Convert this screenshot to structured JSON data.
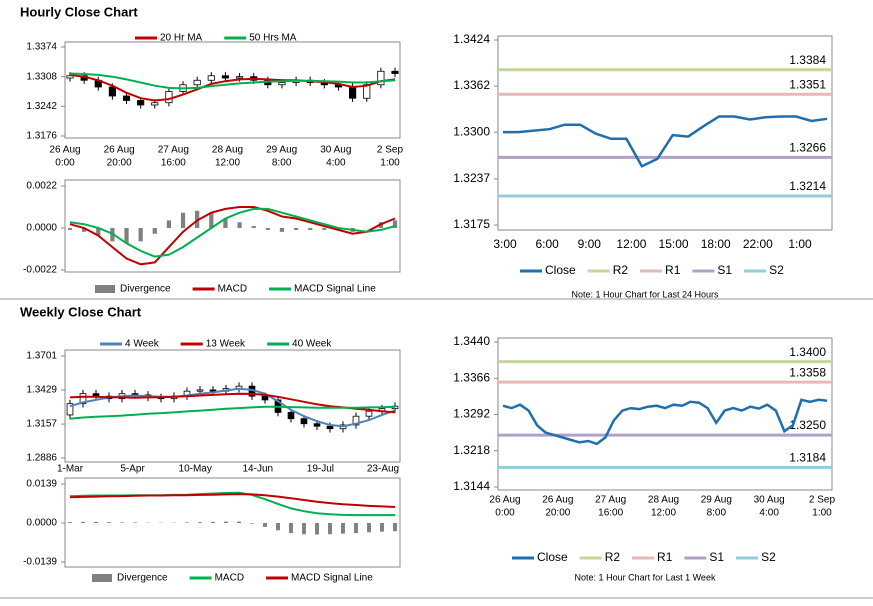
{
  "chart_data": [
    {
      "type": "candlestick",
      "title": "Hourly Close Chart",
      "ohlc": {
        "color": "#000000",
        "open": [
          1.3305,
          1.331,
          1.33,
          1.3285,
          1.3265,
          1.3255,
          1.3245,
          1.325,
          1.3275,
          1.329,
          1.33,
          1.331,
          1.3305,
          1.3308,
          1.33,
          1.329,
          1.3295,
          1.33,
          1.3295,
          1.329,
          1.3285,
          1.326,
          1.329,
          1.332
        ],
        "high": [
          1.3318,
          1.3318,
          1.3308,
          1.3293,
          1.3273,
          1.3263,
          1.3258,
          1.3283,
          1.3298,
          1.3308,
          1.3318,
          1.3318,
          1.3316,
          1.3316,
          1.3308,
          1.3303,
          1.3308,
          1.3308,
          1.3303,
          1.3298,
          1.3293,
          1.3298,
          1.3328,
          1.3328
        ],
        "low": [
          1.3297,
          1.3292,
          1.3277,
          1.3257,
          1.3247,
          1.3237,
          1.3237,
          1.3242,
          1.3267,
          1.3282,
          1.3292,
          1.3297,
          1.3297,
          1.3292,
          1.3282,
          1.3282,
          1.3287,
          1.3287,
          1.3282,
          1.3277,
          1.3252,
          1.3252,
          1.3282,
          1.3307
        ],
        "close": [
          1.331,
          1.33,
          1.3285,
          1.3265,
          1.3255,
          1.3245,
          1.325,
          1.3275,
          1.329,
          1.33,
          1.331,
          1.3305,
          1.3308,
          1.33,
          1.329,
          1.3295,
          1.33,
          1.3295,
          1.329,
          1.3285,
          1.326,
          1.329,
          1.332,
          1.3315
        ]
      },
      "series": [
        {
          "name": "20 Hr MA",
          "color": "#c00000",
          "values": [
            1.3312,
            1.3308,
            1.33,
            1.3288,
            1.3272,
            1.326,
            1.3255,
            1.3258,
            1.3268,
            1.328,
            1.3292,
            1.3298,
            1.3302,
            1.3303,
            1.3302,
            1.33,
            1.33,
            1.3298,
            1.3296,
            1.3292,
            1.3285,
            1.3288,
            1.3298,
            1.3302
          ]
        },
        {
          "name": "50 Hrs MA",
          "color": "#00b050",
          "values": [
            1.3315,
            1.3314,
            1.3312,
            1.3308,
            1.3302,
            1.3295,
            1.3288,
            1.3283,
            1.3282,
            1.3283,
            1.3287,
            1.329,
            1.3293,
            1.3295,
            1.3297,
            1.3298,
            1.3299,
            1.3299,
            1.3298,
            1.3297,
            1.3295,
            1.3295,
            1.3298,
            1.33
          ]
        }
      ],
      "ylim": [
        1.3176,
        1.3374
      ],
      "yticks": [
        1.3374,
        1.3308,
        1.3242,
        1.3176
      ],
      "xtick_labels": [
        [
          "26 Aug",
          "0:00"
        ],
        [
          "26 Aug",
          "20:00"
        ],
        [
          "27 Aug",
          "16:00"
        ],
        [
          "28 Aug",
          "12:00"
        ],
        [
          "29 Aug",
          "8:00"
        ],
        [
          "30 Aug",
          "4:00"
        ],
        [
          "2 Sep",
          "1:00"
        ]
      ]
    },
    {
      "type": "macd",
      "series": [
        {
          "name": "Divergence",
          "color": "#808080",
          "kind": "bar",
          "values": [
            -0.0001,
            -0.0002,
            -0.0004,
            -0.0007,
            -0.0008,
            -0.0007,
            -0.0003,
            0.0004,
            0.0008,
            0.0009,
            0.0008,
            0.0005,
            0.0003,
            0.0001,
            -0.0001,
            -0.0002,
            -0.0001,
            -0.0001,
            -0.0001,
            -0.0001,
            -0.0002,
            0.0,
            0.0003,
            0.0004
          ]
        },
        {
          "name": "MACD",
          "color": "#c00000",
          "values": [
            0.0002,
            0.0,
            -0.0004,
            -0.001,
            -0.0016,
            -0.0019,
            -0.0018,
            -0.001,
            -0.0002,
            0.0004,
            0.0008,
            0.001,
            0.0011,
            0.0011,
            0.0009,
            0.0006,
            0.0005,
            0.0003,
            0.0001,
            -0.0001,
            -0.0003,
            -0.0002,
            0.0002,
            0.0005
          ]
        },
        {
          "name": "MACD Signal Line",
          "color": "#00b050",
          "values": [
            0.0003,
            0.0002,
            0.0,
            -0.0003,
            -0.0008,
            -0.0012,
            -0.0015,
            -0.0014,
            -0.001,
            -0.0005,
            0.0,
            0.0005,
            0.0008,
            0.001,
            0.001,
            0.0008,
            0.0006,
            0.0004,
            0.0002,
            0.0,
            -0.0001,
            -0.0002,
            -0.0001,
            0.0001
          ]
        }
      ],
      "ylim": [
        -0.0022,
        0.0022
      ],
      "yticks": [
        0.0022,
        {
          "value": 0,
          "label": "0.0000"
        },
        -0.0022
      ]
    },
    {
      "type": "line",
      "series": [
        {
          "name": "Close",
          "color": "#1f6eb0",
          "values": [
            1.33,
            1.33,
            1.3302,
            1.3304,
            1.331,
            1.331,
            1.3298,
            1.3291,
            1.3291,
            1.3254,
            1.3264,
            1.3296,
            1.3294,
            1.3308,
            1.3321,
            1.3321,
            1.3317,
            1.332,
            1.3321,
            1.3321,
            1.3315,
            1.3318
          ]
        }
      ],
      "levels": [
        {
          "name": "R2",
          "color": "#c4d79b",
          "value": 1.3384
        },
        {
          "name": "R1",
          "color": "#e6b9b8",
          "value": 1.3351
        },
        {
          "name": "S1",
          "color": "#b1a0c7",
          "value": 1.3266
        },
        {
          "name": "S2",
          "color": "#92cddc",
          "value": 1.3214
        }
      ],
      "ylim": [
        1.3175,
        1.3424
      ],
      "yticks": [
        1.3424,
        1.3362,
        {
          "value": 1.33,
          "label": "1.3300"
        },
        1.3237,
        1.3175
      ],
      "xtick_labels": [
        [
          "3:00"
        ],
        [
          "6:00"
        ],
        [
          "9:00"
        ],
        [
          "12:00"
        ],
        [
          "15:00"
        ],
        [
          "18:00"
        ],
        [
          "22:00"
        ],
        [
          "1:00"
        ]
      ],
      "note": "Note: 1 Hour Chart for Last 24 Hours"
    },
    {
      "type": "line",
      "series": [
        {
          "name": "Close",
          "color": "#1f6eb0",
          "values": [
            1.331,
            1.3305,
            1.3312,
            1.33,
            1.327,
            1.3255,
            1.325,
            1.3245,
            1.324,
            1.3235,
            1.3238,
            1.3232,
            1.3245,
            1.328,
            1.33,
            1.3305,
            1.3303,
            1.3308,
            1.331,
            1.3305,
            1.3312,
            1.331,
            1.3318,
            1.3316,
            1.3305,
            1.3275,
            1.33,
            1.3305,
            1.33,
            1.3308,
            1.3304,
            1.3312,
            1.33,
            1.3258,
            1.327,
            1.3322,
            1.3318,
            1.3322,
            1.332
          ]
        }
      ],
      "levels": [
        {
          "name": "R2",
          "color": "#c4d79b",
          "value": 1.34,
          "label": "1.3400"
        },
        {
          "name": "R1",
          "color": "#e6b9b8",
          "value": 1.3358
        },
        {
          "name": "S1",
          "color": "#b1a0c7",
          "value": 1.325,
          "label": "1.3250"
        },
        {
          "name": "S2",
          "color": "#92cddc",
          "value": 1.3184
        }
      ],
      "ylim": [
        1.3144,
        1.344
      ],
      "yticks": [
        {
          "value": 1.344,
          "label": "1.3440"
        },
        1.3366,
        1.3292,
        1.3218,
        1.3144
      ],
      "xtick_labels": [
        [
          "26 Aug",
          "0:00"
        ],
        [
          "26 Aug",
          "20:00"
        ],
        [
          "27 Aug",
          "16:00"
        ],
        [
          "28 Aug",
          "12:00"
        ],
        [
          "29 Aug",
          "8:00"
        ],
        [
          "30 Aug",
          "4:00"
        ],
        [
          "2 Sep",
          "1:00"
        ]
      ],
      "note": "Note: 1 Hour Chart for Last 1 Week"
    },
    {
      "type": "candlestick",
      "title": "Weekly Close Chart",
      "ohlc": {
        "color": "#000000",
        "open": [
          1.323,
          1.332,
          1.34,
          1.338,
          1.336,
          1.34,
          1.339,
          1.337,
          1.336,
          1.338,
          1.342,
          1.343,
          1.342,
          1.344,
          1.346,
          1.338,
          1.335,
          1.325,
          1.32,
          1.316,
          1.314,
          1.312,
          1.315,
          1.322,
          1.326,
          1.328
        ],
        "high": [
          1.335,
          1.343,
          1.343,
          1.341,
          1.343,
          1.343,
          1.342,
          1.34,
          1.341,
          1.345,
          1.346,
          1.346,
          1.347,
          1.349,
          1.349,
          1.341,
          1.338,
          1.328,
          1.323,
          1.319,
          1.317,
          1.318,
          1.325,
          1.329,
          1.331,
          1.333
        ],
        "low": [
          1.32,
          1.329,
          1.335,
          1.333,
          1.333,
          1.336,
          1.334,
          1.333,
          1.333,
          1.335,
          1.339,
          1.339,
          1.339,
          1.341,
          1.335,
          1.332,
          1.322,
          1.317,
          1.313,
          1.311,
          1.309,
          1.309,
          1.312,
          1.319,
          1.323,
          1.325
        ],
        "close": [
          1.332,
          1.34,
          1.338,
          1.336,
          1.34,
          1.339,
          1.337,
          1.336,
          1.338,
          1.342,
          1.343,
          1.342,
          1.344,
          1.346,
          1.338,
          1.335,
          1.325,
          1.32,
          1.316,
          1.314,
          1.312,
          1.315,
          1.322,
          1.326,
          1.328,
          1.33
        ]
      },
      "series": [
        {
          "name": "4 Week",
          "color": "#4f81bd",
          "values": [
            1.33,
            1.333,
            1.335,
            1.337,
            1.338,
            1.3385,
            1.338,
            1.3375,
            1.3375,
            1.3385,
            1.34,
            1.341,
            1.3425,
            1.344,
            1.343,
            1.34,
            1.334,
            1.327,
            1.322,
            1.318,
            1.315,
            1.314,
            1.316,
            1.319,
            1.323,
            1.3265
          ]
        },
        {
          "name": "13 Week",
          "color": "#c00000",
          "values": [
            1.337,
            1.3375,
            1.3375,
            1.3372,
            1.337,
            1.3368,
            1.337,
            1.3372,
            1.3375,
            1.338,
            1.3385,
            1.339,
            1.3395,
            1.34,
            1.3398,
            1.339,
            1.3375,
            1.3355,
            1.3335,
            1.3315,
            1.33,
            1.329,
            1.328,
            1.327,
            1.326,
            1.325
          ]
        },
        {
          "name": "40 Week",
          "color": "#00b050",
          "values": [
            1.32,
            1.321,
            1.3215,
            1.322,
            1.3225,
            1.3232,
            1.324,
            1.3245,
            1.325,
            1.3258,
            1.3265,
            1.3272,
            1.328,
            1.3285,
            1.329,
            1.3295,
            1.3295,
            1.3293,
            1.329,
            1.3288,
            1.3287,
            1.3287,
            1.3288,
            1.329,
            1.3292,
            1.3295
          ]
        }
      ],
      "ylim": [
        1.2886,
        1.3701
      ],
      "yticks": [
        1.3701,
        1.3429,
        1.3157,
        1.2886
      ],
      "xtick_labels": [
        [
          "1-Mar"
        ],
        [
          "5-Apr"
        ],
        [
          "10-May"
        ],
        [
          "14-Jun"
        ],
        [
          "19-Jul"
        ],
        [
          "23-Aug"
        ]
      ]
    },
    {
      "type": "macd",
      "series": [
        {
          "name": "Divergence",
          "color": "#808080",
          "kind": "bar",
          "values": [
            0.0003,
            0.0004,
            0.0004,
            0.0003,
            0.0002,
            0.0002,
            0.0001,
            0.0001,
            0.0001,
            0.0002,
            0.0003,
            0.0004,
            0.0005,
            0.0005,
            -0.0002,
            -0.0014,
            -0.0026,
            -0.0036,
            -0.004,
            -0.0041,
            -0.004,
            -0.0038,
            -0.0036,
            -0.0033,
            -0.0031,
            -0.0029
          ]
        },
        {
          "name": "MACD",
          "color": "#00b050",
          "values": [
            0.0095,
            0.0097,
            0.0098,
            0.0098,
            0.0098,
            0.0099,
            0.0099,
            0.0099,
            0.01,
            0.0101,
            0.0103,
            0.0105,
            0.0107,
            0.0108,
            0.01,
            0.0085,
            0.0068,
            0.0052,
            0.0042,
            0.0035,
            0.0031,
            0.0029,
            0.0028,
            0.0028,
            0.0028,
            0.0028
          ]
        },
        {
          "name": "MACD Signal Line",
          "color": "#c00000",
          "values": [
            0.0092,
            0.0093,
            0.0094,
            0.0095,
            0.0096,
            0.0097,
            0.0098,
            0.0098,
            0.0099,
            0.0099,
            0.01,
            0.0101,
            0.0102,
            0.0103,
            0.0102,
            0.0099,
            0.0094,
            0.0088,
            0.0082,
            0.0076,
            0.0071,
            0.0067,
            0.0064,
            0.0061,
            0.0059,
            0.0057
          ]
        }
      ],
      "ylim": [
        -0.0139,
        0.0139
      ],
      "yticks": [
        0.0139,
        {
          "value": 0,
          "label": "0.0000"
        },
        -0.0139
      ]
    }
  ]
}
